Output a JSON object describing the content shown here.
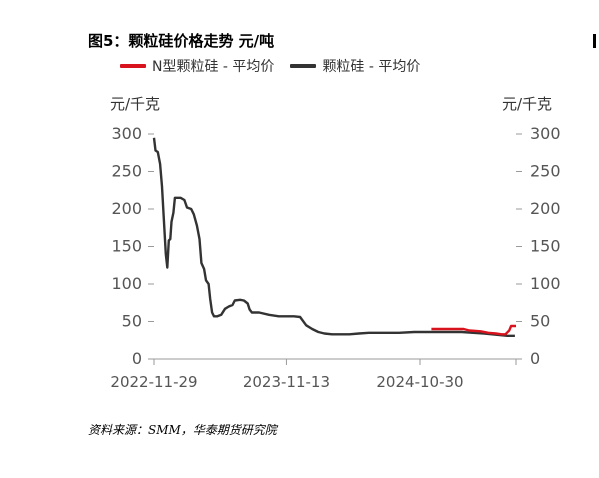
{
  "title": "图5：颗粒硅价格走势 元/吨",
  "legend": [
    {
      "label": "N型颗粒硅 - 平均价",
      "color": "#d9131d"
    },
    {
      "label": "颗粒硅 - 平均价",
      "color": "#333333"
    }
  ],
  "unit_left": "元/千克",
  "unit_right": "元/千克",
  "source": "资料来源：SMM，华泰期货研究院",
  "chart_data": {
    "type": "line",
    "title": "图5：颗粒硅价格走势 元/吨",
    "ylim": [
      0,
      300
    ],
    "y_ticks": [
      0,
      50,
      100,
      150,
      200,
      250,
      300
    ],
    "x_ticks": [
      "2022-11-29",
      "2023-11-13",
      "2024-10-30"
    ],
    "x_range": [
      "2022-11-29",
      "2025-07-10"
    ],
    "ylabel_left": "元/千克",
    "ylabel_right": "元/千克",
    "legend_position": "top",
    "series": [
      {
        "name": "颗粒硅 - 平均价",
        "color": "#333333",
        "points": [
          [
            "2022-11-29",
            295
          ],
          [
            "2022-12-03",
            278
          ],
          [
            "2022-12-09",
            276
          ],
          [
            "2022-12-15",
            260
          ],
          [
            "2022-12-20",
            230
          ],
          [
            "2022-12-25",
            185
          ],
          [
            "2022-12-30",
            140
          ],
          [
            "2023-01-03",
            122
          ],
          [
            "2023-01-07",
            158
          ],
          [
            "2023-01-11",
            160
          ],
          [
            "2023-01-14",
            183
          ],
          [
            "2023-01-19",
            195
          ],
          [
            "2023-01-23",
            215
          ],
          [
            "2023-02-07",
            215
          ],
          [
            "2023-02-17",
            212
          ],
          [
            "2023-02-24",
            202
          ],
          [
            "2023-03-07",
            200
          ],
          [
            "2023-03-14",
            193
          ],
          [
            "2023-03-22",
            178
          ],
          [
            "2023-03-29",
            160
          ],
          [
            "2023-04-03",
            128
          ],
          [
            "2023-04-10",
            120
          ],
          [
            "2023-04-15",
            105
          ],
          [
            "2023-04-22",
            100
          ],
          [
            "2023-04-26",
            80
          ],
          [
            "2023-05-01",
            62
          ],
          [
            "2023-05-06",
            57
          ],
          [
            "2023-05-15",
            57
          ],
          [
            "2023-05-25",
            59
          ],
          [
            "2023-06-04",
            67
          ],
          [
            "2023-06-14",
            70
          ],
          [
            "2023-06-24",
            72
          ],
          [
            "2023-06-30",
            78
          ],
          [
            "2023-07-14",
            79
          ],
          [
            "2023-07-24",
            78
          ],
          [
            "2023-08-03",
            74
          ],
          [
            "2023-08-08",
            66
          ],
          [
            "2023-08-14",
            62
          ],
          [
            "2023-09-02",
            62
          ],
          [
            "2023-09-28",
            59
          ],
          [
            "2023-10-24",
            57
          ],
          [
            "2023-11-13",
            57
          ],
          [
            "2023-12-03",
            57
          ],
          [
            "2023-12-19",
            56
          ],
          [
            "2024-01-04",
            45
          ],
          [
            "2024-01-20",
            40
          ],
          [
            "2024-02-05",
            36
          ],
          [
            "2024-02-21",
            34
          ],
          [
            "2024-03-12",
            33
          ],
          [
            "2024-04-27",
            33
          ],
          [
            "2024-05-22",
            34
          ],
          [
            "2024-06-17",
            35
          ],
          [
            "2024-07-27",
            35
          ],
          [
            "2024-09-05",
            35
          ],
          [
            "2024-10-15",
            36
          ],
          [
            "2024-12-09",
            36
          ],
          [
            "2025-02-17",
            36
          ],
          [
            "2025-03-19",
            35
          ],
          [
            "2025-04-18",
            34
          ],
          [
            "2025-05-08",
            33
          ],
          [
            "2025-05-28",
            32
          ],
          [
            "2025-06-17",
            31
          ],
          [
            "2025-07-07",
            31
          ]
        ]
      },
      {
        "name": "N型颗粒硅 - 平均价",
        "color": "#d9131d",
        "points": [
          [
            "2024-11-29",
            40
          ],
          [
            "2025-01-18",
            40
          ],
          [
            "2025-02-22",
            40
          ],
          [
            "2025-03-09",
            38
          ],
          [
            "2025-04-08",
            37
          ],
          [
            "2025-04-28",
            35
          ],
          [
            "2025-05-18",
            34
          ],
          [
            "2025-06-02",
            33
          ],
          [
            "2025-06-12",
            33
          ],
          [
            "2025-06-22",
            38
          ],
          [
            "2025-06-27",
            44
          ],
          [
            "2025-07-10",
            44
          ]
        ]
      }
    ]
  }
}
